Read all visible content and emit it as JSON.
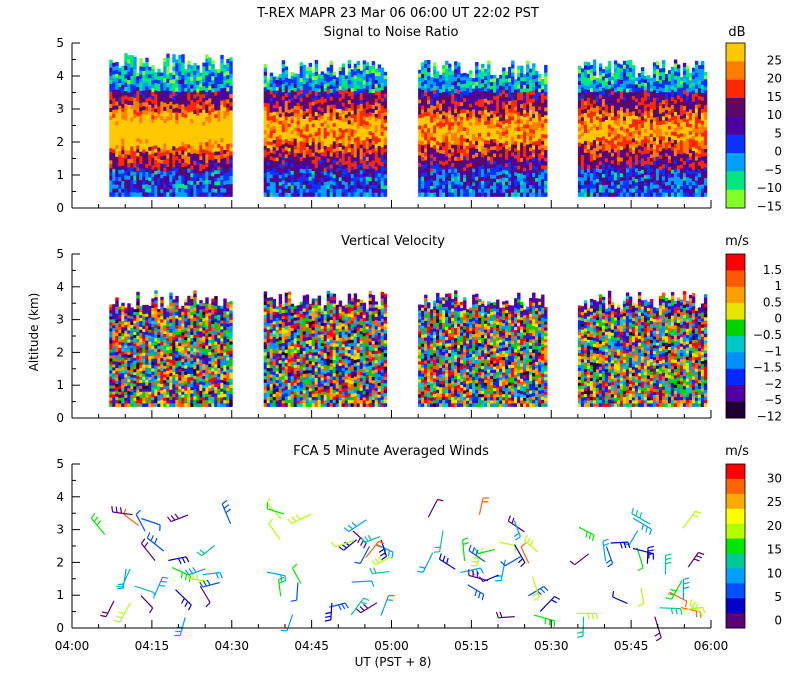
{
  "figure": {
    "title_line1": "T-REX   MAPR 23 Mar 06   06:00 UT   22:02   PST",
    "xlabel": "UT  (PST + 8)",
    "ylabel": "Altitude (km)"
  },
  "chart_data": [
    {
      "type": "heatmap",
      "title": "Signal to Noise Ratio",
      "unit": "dB",
      "x_range": [
        "04:00",
        "06:00"
      ],
      "x_ticks": [
        "04:00",
        "04:15",
        "04:30",
        "04:45",
        "05:00",
        "05:15",
        "05:30",
        "05:45",
        "06:00"
      ],
      "y_ticks": [
        "0",
        "1",
        "2",
        "3",
        "4",
        "5"
      ],
      "ylim": [
        0,
        5
      ],
      "colorbar_labels": [
        "25",
        "20",
        "15",
        "10",
        "5",
        "0",
        "−5",
        "−10",
        "−15"
      ],
      "colorbar_colors": [
        "#ffc800",
        "#ff7d00",
        "#ff2800",
        "#5a0a64",
        "#4b00a0",
        "#0a32ff",
        "#00a0ff",
        "#00e680",
        "#82ff28"
      ],
      "data_segments_ut": [
        [
          "04:07",
          "04:30"
        ],
        [
          "04:36",
          "04:59"
        ],
        [
          "05:05",
          "05:29"
        ],
        [
          "05:35",
          "05:59"
        ]
      ]
    },
    {
      "type": "heatmap",
      "title": "Vertical Velocity",
      "unit": "m/s",
      "x_range": [
        "04:00",
        "06:00"
      ],
      "x_ticks": [
        "04:00",
        "04:15",
        "04:30",
        "04:45",
        "05:00",
        "05:15",
        "05:30",
        "05:45",
        "06:00"
      ],
      "y_ticks": [
        "0",
        "1",
        "2",
        "3",
        "4",
        "5"
      ],
      "ylim": [
        0,
        5
      ],
      "colorbar_labels": [
        "1.5",
        "1",
        "0.5",
        "0",
        "−0.5",
        "−1",
        "−1.5",
        "−2",
        "−5",
        "−12"
      ],
      "colorbar_colors": [
        "#ff0000",
        "#ff5a00",
        "#ffa000",
        "#e6e600",
        "#00d200",
        "#00c8c8",
        "#0090ff",
        "#0028ff",
        "#5000a0",
        "#200030"
      ],
      "data_segments_ut": [
        [
          "04:07",
          "04:30"
        ],
        [
          "04:36",
          "04:59"
        ],
        [
          "05:05",
          "05:29"
        ],
        [
          "05:35",
          "05:59"
        ]
      ]
    },
    {
      "type": "scatter",
      "title": "FCA 5 Minute Averaged Winds",
      "unit": "m/s",
      "x_range": [
        "04:00",
        "06:00"
      ],
      "x_ticks": [
        "04:00",
        "04:15",
        "04:30",
        "04:45",
        "05:00",
        "05:15",
        "05:30",
        "05:45",
        "06:00"
      ],
      "y_ticks": [
        "0",
        "1",
        "2",
        "3",
        "4",
        "5"
      ],
      "ylim": [
        0,
        5
      ],
      "colorbar_labels": [
        "30",
        "25",
        "20",
        "15",
        "10",
        "5",
        "0"
      ],
      "colorbar_colors": [
        "#ff0000",
        "#ff6400",
        "#ffaa00",
        "#ffff00",
        "#b4ff00",
        "#00e600",
        "#00c896",
        "#00a0ff",
        "#0050ff",
        "#0000c8",
        "#5a0078"
      ],
      "data_segments_ut": [
        [
          "04:06",
          "04:30"
        ],
        [
          "04:36",
          "05:00"
        ],
        [
          "05:06",
          "05:30"
        ],
        [
          "05:34",
          "06:00"
        ]
      ]
    }
  ]
}
